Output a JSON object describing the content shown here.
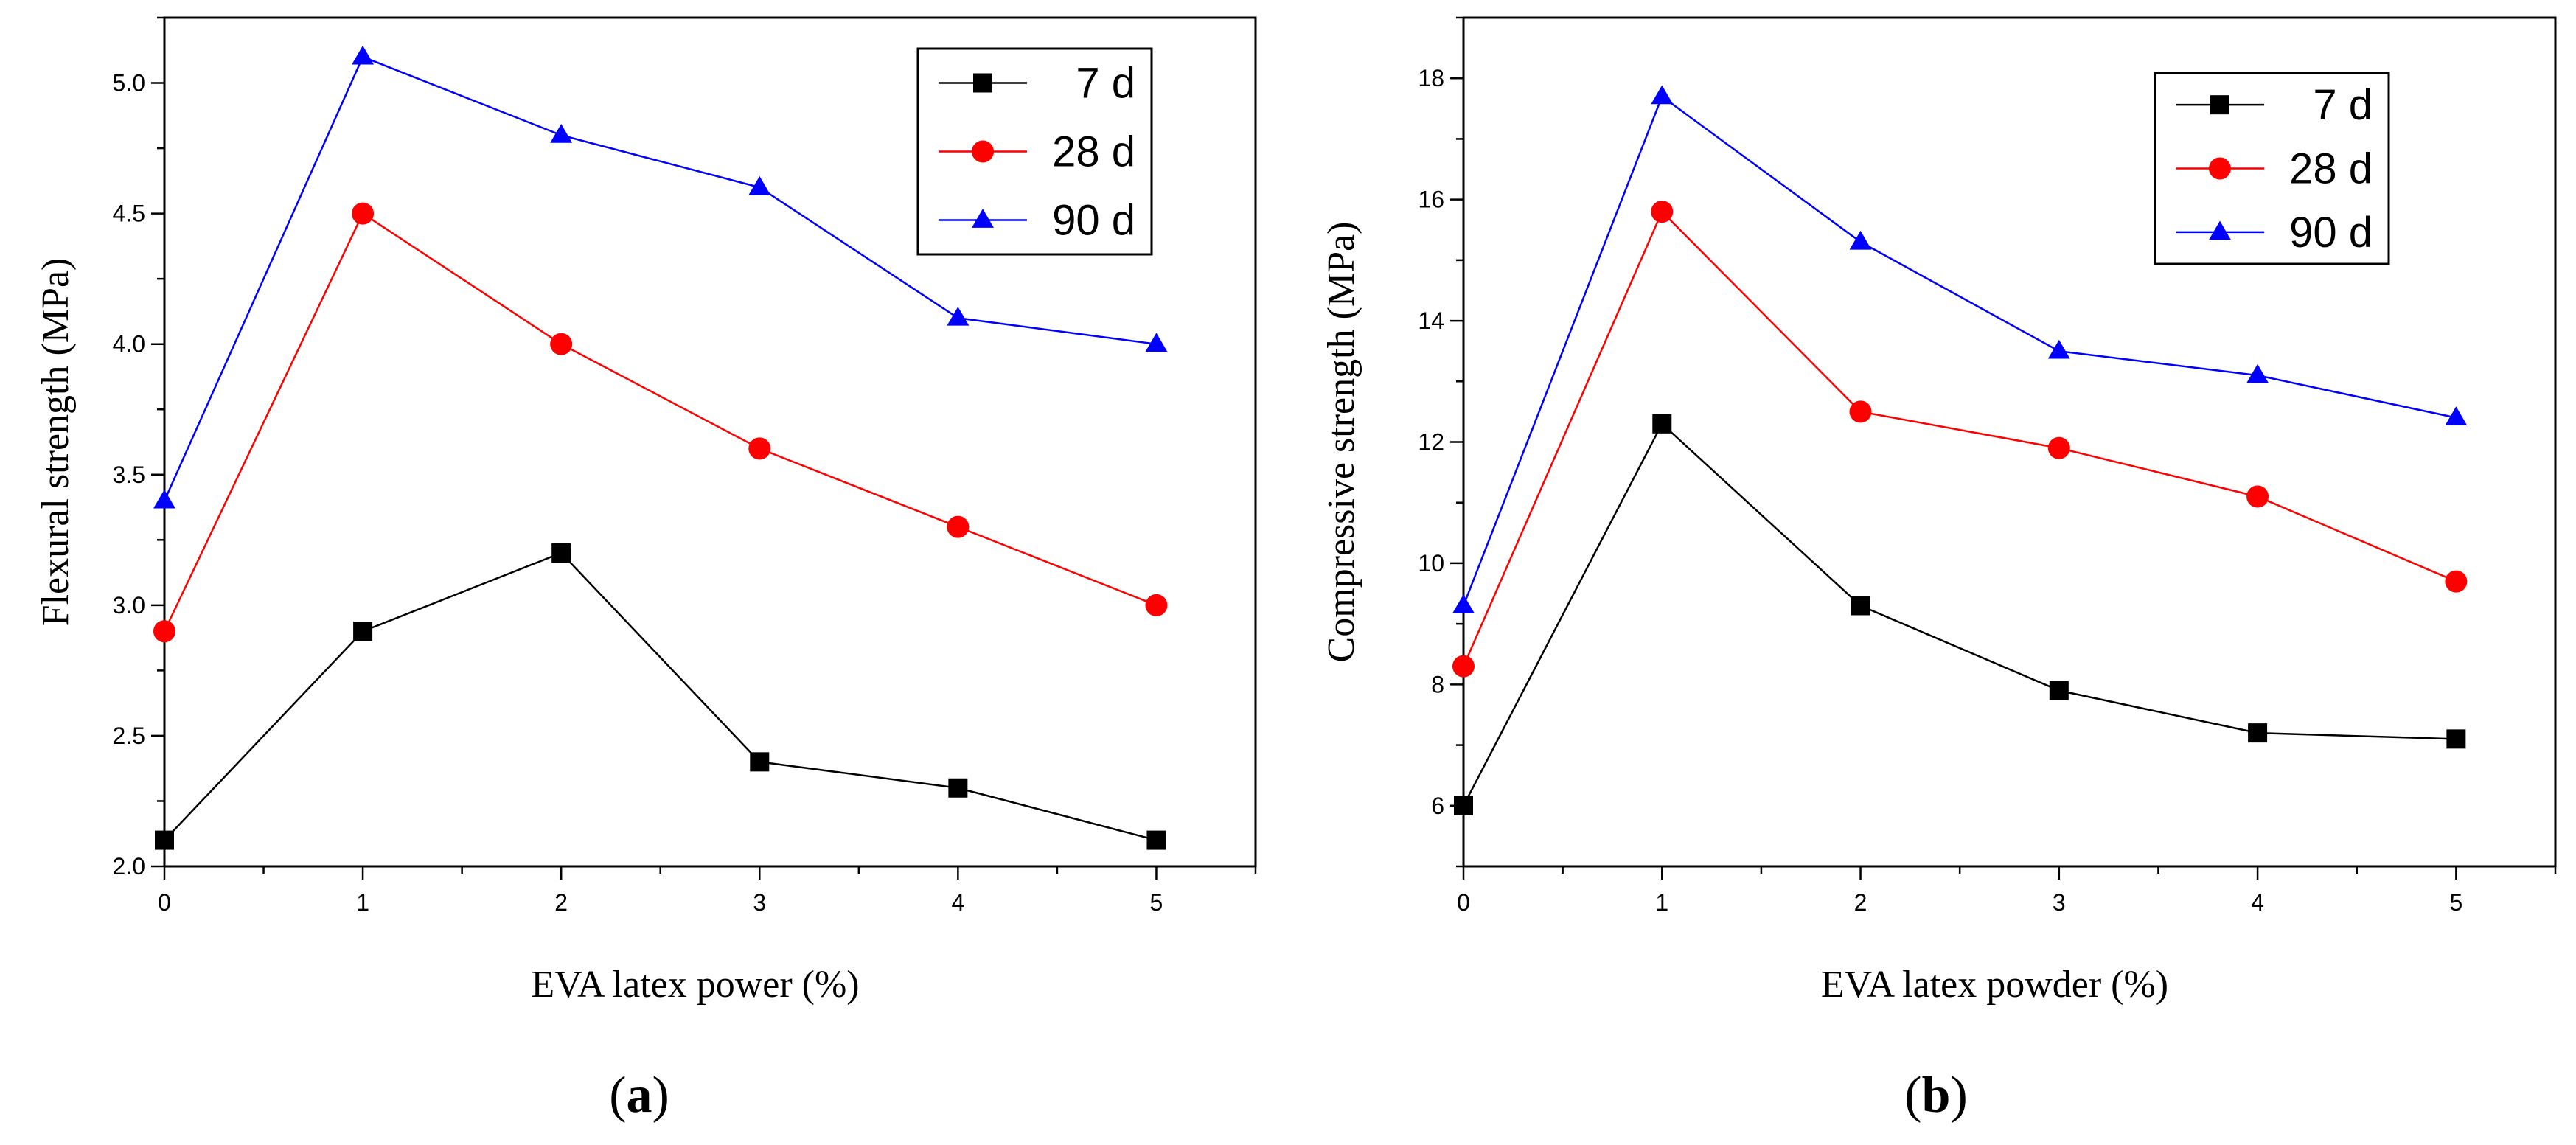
{
  "chart_data": [
    {
      "type": "line",
      "panel_label_open": "(",
      "panel_label_letter": "a",
      "panel_label_close": ")",
      "xlabel": "EVA latex power (%)",
      "ylabel": "Flexural strength (MPa)",
      "x": [
        0,
        1,
        2,
        3,
        4,
        5
      ],
      "xlim": [
        0,
        5.5
      ],
      "ylim": [
        2.0,
        5.25
      ],
      "xticks": [
        0,
        1,
        2,
        3,
        4,
        5
      ],
      "xtick_labels": [
        "0",
        "1",
        "2",
        "3",
        "4",
        "5"
      ],
      "yticks": [
        2.0,
        2.5,
        3.0,
        3.5,
        4.0,
        4.5,
        5.0
      ],
      "ytick_labels": [
        "2.0",
        "2.5",
        "3.0",
        "3.5",
        "4.0",
        "4.5",
        "5.0"
      ],
      "legend_position": "top-right",
      "series": [
        {
          "name": "7 d",
          "marker": "square",
          "color": "#000000",
          "values": [
            2.1,
            2.9,
            3.2,
            2.4,
            2.3,
            2.1
          ]
        },
        {
          "name": "28 d",
          "marker": "circle",
          "color": "#ff0000",
          "values": [
            2.9,
            4.5,
            4.0,
            3.6,
            3.3,
            3.0
          ]
        },
        {
          "name": "90 d",
          "marker": "triangle",
          "color": "#0000ff",
          "values": [
            3.4,
            5.1,
            4.8,
            4.6,
            4.1,
            4.0
          ]
        }
      ]
    },
    {
      "type": "line",
      "panel_label_open": "(",
      "panel_label_letter": "b",
      "panel_label_close": ")",
      "xlabel": "EVA latex powder (%)",
      "ylabel": "Compressive strength (MPa)",
      "x": [
        0,
        1,
        2,
        3,
        4,
        5
      ],
      "xlim": [
        0,
        5.5
      ],
      "ylim": [
        5.0,
        19.0
      ],
      "xticks": [
        0,
        1,
        2,
        3,
        4,
        5
      ],
      "xtick_labels": [
        "0",
        "1",
        "2",
        "3",
        "4",
        "5"
      ],
      "yticks": [
        6,
        8,
        10,
        12,
        14,
        16,
        18
      ],
      "ytick_labels": [
        "6",
        "8",
        "10",
        "12",
        "14",
        "16",
        "18"
      ],
      "legend_position": "top-right",
      "series": [
        {
          "name": "7 d",
          "marker": "square",
          "color": "#000000",
          "values": [
            6.0,
            12.3,
            9.3,
            7.9,
            7.2,
            7.1
          ]
        },
        {
          "name": "28 d",
          "marker": "circle",
          "color": "#ff0000",
          "values": [
            8.3,
            15.8,
            12.5,
            11.9,
            11.1,
            9.7
          ]
        },
        {
          "name": "90 d",
          "marker": "triangle",
          "color": "#0000ff",
          "values": [
            9.3,
            17.7,
            15.3,
            13.5,
            13.1,
            12.4
          ]
        }
      ]
    }
  ]
}
